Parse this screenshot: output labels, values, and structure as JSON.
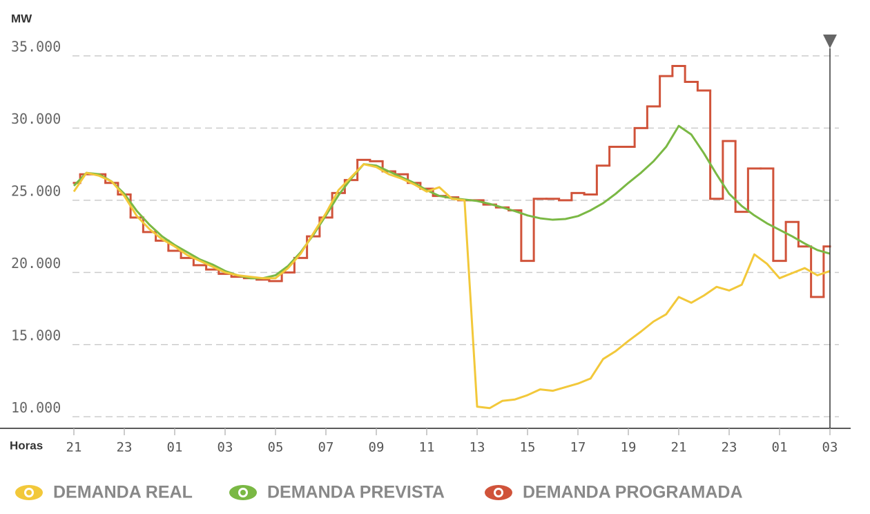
{
  "chart_data": {
    "type": "line",
    "y_label": "MW",
    "x_label": "Horas",
    "x": [
      0,
      0.5,
      1,
      1.5,
      2,
      2.5,
      3,
      3.5,
      4,
      4.5,
      5,
      5.5,
      6,
      6.5,
      7,
      7.5,
      8,
      8.5,
      9,
      9.5,
      10,
      10.5,
      11,
      11.5,
      12,
      12.5,
      13,
      13.5,
      14,
      14.5,
      15,
      15.5,
      16,
      16.5,
      17,
      17.5,
      18,
      18.5,
      19,
      19.5,
      20,
      20.5,
      21,
      21.5,
      22,
      22.5,
      23,
      23.5,
      24,
      24.5,
      25,
      25.5,
      26,
      26.5,
      27,
      27.5,
      28,
      28.5,
      29,
      29.5,
      30
    ],
    "xlim": [
      0,
      30
    ],
    "xticks": [
      {
        "value": 0,
        "label": "21"
      },
      {
        "value": 2,
        "label": "23"
      },
      {
        "value": 4,
        "label": "01"
      },
      {
        "value": 6,
        "label": "03"
      },
      {
        "value": 8,
        "label": "05"
      },
      {
        "value": 10,
        "label": "07"
      },
      {
        "value": 12,
        "label": "09"
      },
      {
        "value": 14,
        "label": "11"
      },
      {
        "value": 16,
        "label": "13"
      },
      {
        "value": 18,
        "label": "15"
      },
      {
        "value": 20,
        "label": "17"
      },
      {
        "value": 22,
        "label": "19"
      },
      {
        "value": 24,
        "label": "21"
      },
      {
        "value": 26,
        "label": "23"
      },
      {
        "value": 28,
        "label": "01"
      },
      {
        "value": 30,
        "label": "03"
      }
    ],
    "ylim": [
      9200,
      36000
    ],
    "yticks": [
      {
        "value": 10000,
        "label": "10.000"
      },
      {
        "value": 15000,
        "label": "15.000"
      },
      {
        "value": 20000,
        "label": "20.000"
      },
      {
        "value": 25000,
        "label": "25.000"
      },
      {
        "value": 30000,
        "label": "30.000"
      },
      {
        "value": 35000,
        "label": "35.000"
      }
    ],
    "grid": true,
    "series": [
      {
        "name": "DEMANDA REAL",
        "color": "#f2c83a",
        "step": false,
        "values": [
          25600,
          26900,
          26700,
          26300,
          25300,
          23900,
          23000,
          22300,
          21800,
          21200,
          20800,
          20400,
          20000,
          19800,
          19700,
          19600,
          19600,
          20300,
          21300,
          22700,
          24100,
          25700,
          26600,
          27500,
          27300,
          26800,
          26500,
          26100,
          25600,
          25900,
          25100,
          25000,
          10700,
          10600,
          11100,
          11200,
          11500,
          11900,
          11800,
          12050,
          12300,
          12650,
          14000,
          14550,
          15250,
          15900,
          16600,
          17100,
          18300,
          17900,
          18400,
          19000,
          18750,
          19150,
          21250,
          20600,
          19600,
          19950,
          20300,
          19800,
          20100
        ]
      },
      {
        "name": "DEMANDA PREVISTA",
        "color": "#7ab844",
        "step": false,
        "values": [
          26000,
          26900,
          26800,
          26300,
          25450,
          24250,
          23300,
          22500,
          21900,
          21400,
          20900,
          20550,
          20100,
          19800,
          19600,
          19600,
          19800,
          20450,
          21400,
          22600,
          23950,
          25350,
          26500,
          27500,
          27400,
          27000,
          26600,
          26200,
          25700,
          25300,
          25150,
          25050,
          24950,
          24750,
          24500,
          24250,
          23950,
          23750,
          23650,
          23700,
          23900,
          24300,
          24800,
          25450,
          26200,
          26900,
          27700,
          28700,
          30150,
          29550,
          28250,
          26800,
          25450,
          24600,
          23950,
          23400,
          22950,
          22500,
          22000,
          21550,
          21300
        ]
      },
      {
        "name": "DEMANDA PROGRAMADA",
        "color": "#d0533a",
        "step": true,
        "values": [
          26200,
          26800,
          26800,
          26200,
          25400,
          23800,
          22800,
          22200,
          21500,
          21000,
          20500,
          20200,
          19900,
          19700,
          19600,
          19500,
          19400,
          20000,
          21000,
          22500,
          23800,
          25500,
          26400,
          27800,
          27700,
          27000,
          26800,
          26200,
          25800,
          25300,
          25200,
          25000,
          25000,
          24700,
          24500,
          24300,
          20800,
          25100,
          25100,
          25000,
          25500,
          25400,
          27400,
          28700,
          28700,
          30000,
          31500,
          33600,
          34300,
          33200,
          32600,
          25100,
          29100,
          24200,
          27200,
          27200,
          20800,
          23500,
          21800,
          18300,
          21800
        ]
      }
    ]
  }
}
